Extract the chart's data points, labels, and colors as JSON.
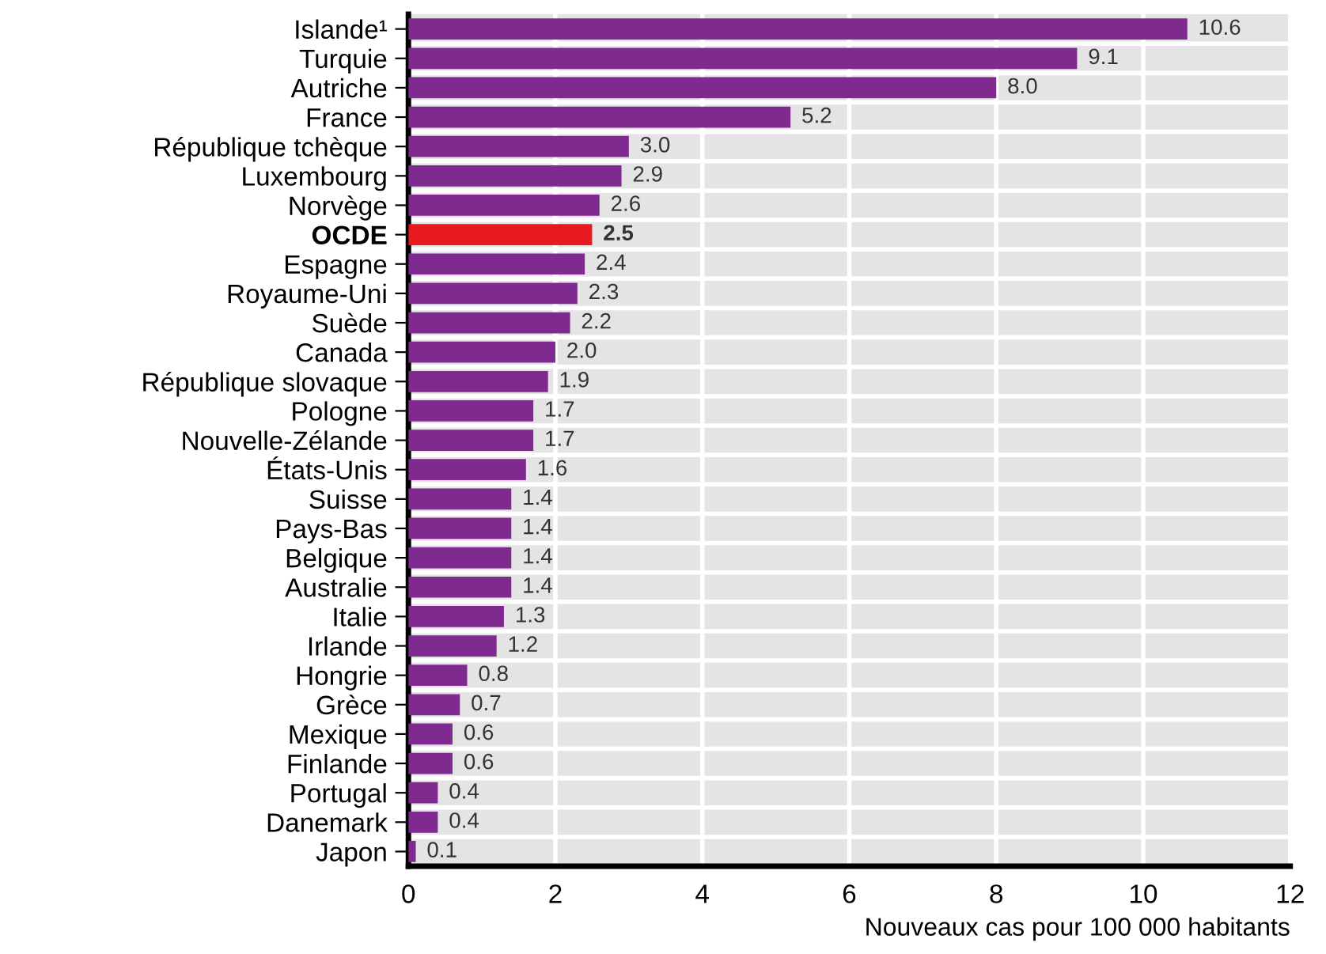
{
  "chart_data": {
    "type": "bar",
    "orientation": "horizontal",
    "xlabel": "Nouveaux cas pour 100 000 habitants",
    "categories": [
      "Islande¹",
      "Turquie",
      "Autriche",
      "France",
      "République tchèque",
      "Luxembourg",
      "Norvège",
      "OCDE",
      "Espagne",
      "Royaume-Uni",
      "Suède",
      "Canada",
      "République slovaque",
      "Pologne",
      "Nouvelle-Zélande",
      "États-Unis",
      "Suisse",
      "Pays-Bas",
      "Belgique",
      "Australie",
      "Italie",
      "Irlande",
      "Hongrie",
      "Grèce",
      "Mexique",
      "Finlande",
      "Portugal",
      "Danemark",
      "Japon"
    ],
    "values": [
      10.6,
      9.1,
      8.0,
      5.2,
      3.0,
      2.9,
      2.6,
      2.5,
      2.4,
      2.3,
      2.2,
      2.0,
      1.9,
      1.7,
      1.7,
      1.6,
      1.4,
      1.4,
      1.4,
      1.4,
      1.3,
      1.2,
      0.8,
      0.7,
      0.6,
      0.6,
      0.4,
      0.4,
      0.1
    ],
    "colors": [
      "#7f2a8f",
      "#7f2a8f",
      "#7f2a8f",
      "#7f2a8f",
      "#7f2a8f",
      "#7f2a8f",
      "#7f2a8f",
      "#e8191f",
      "#7f2a8f",
      "#7f2a8f",
      "#7f2a8f",
      "#7f2a8f",
      "#7f2a8f",
      "#7f2a8f",
      "#7f2a8f",
      "#7f2a8f",
      "#7f2a8f",
      "#7f2a8f",
      "#7f2a8f",
      "#7f2a8f",
      "#7f2a8f",
      "#7f2a8f",
      "#7f2a8f",
      "#7f2a8f",
      "#7f2a8f",
      "#7f2a8f",
      "#7f2a8f",
      "#7f2a8f",
      "#7f2a8f"
    ],
    "value_labels": [
      "10.6",
      "9.1",
      "8.0",
      "5.2",
      "3.0",
      "2.9",
      "2.6",
      "2.5",
      "2.4",
      "2.3",
      "2.2",
      "2.0",
      "1.9",
      "1.7",
      "1.7",
      "1.6",
      "1.4",
      "1.4",
      "1.4",
      "1.4",
      "1.3",
      "1.2",
      "0.8",
      "0.7",
      "0.6",
      "0.6",
      "0.4",
      "0.4",
      "0.1"
    ],
    "xlim": [
      0,
      12
    ],
    "xticks": [
      0,
      2,
      4,
      6,
      8,
      10,
      12
    ],
    "grid": "x"
  }
}
